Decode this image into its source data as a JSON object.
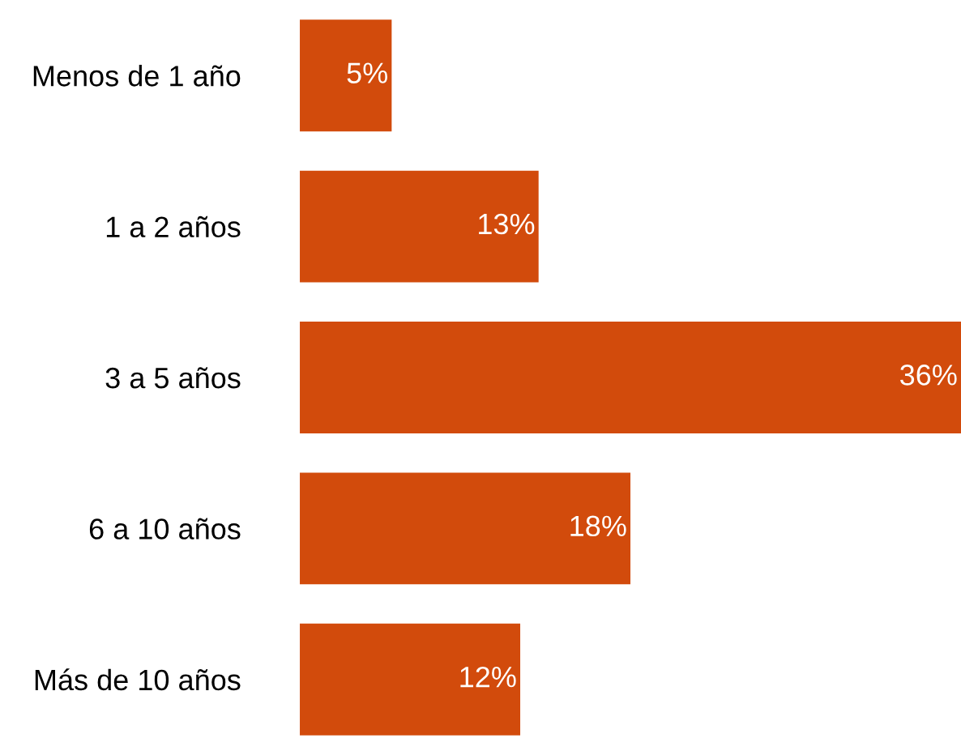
{
  "chart_data": {
    "type": "bar",
    "orientation": "horizontal",
    "categories": [
      "Menos de 1 año",
      "1 a 2 años",
      "3 a 5 años",
      "6 a 10 años",
      "Más de 10 años"
    ],
    "values": [
      5,
      13,
      36,
      18,
      12
    ],
    "value_labels": [
      "5%",
      "13%",
      "36%",
      "18%",
      "12%"
    ],
    "color": "#d24b0c"
  }
}
